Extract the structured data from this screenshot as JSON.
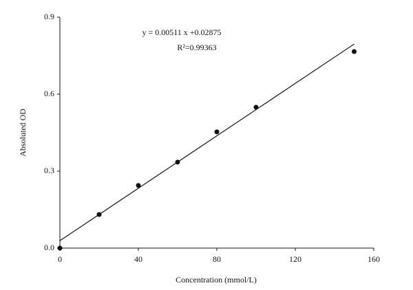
{
  "chart_data": {
    "type": "scatter",
    "x_label": "Concentration (mmol/L)",
    "y_label": "Absoluted OD",
    "annotations": [
      "y = 0.00511 x +0.02875",
      "R²=0.99363"
    ],
    "x": [
      0,
      20,
      40,
      60,
      80,
      100,
      150
    ],
    "values": [
      0.0,
      0.131,
      0.244,
      0.335,
      0.453,
      0.549,
      0.766
    ],
    "color": "#111111",
    "fit": {
      "slope": 0.00511,
      "intercept": 0.02875
    },
    "xlim": [
      0,
      160
    ],
    "xticks": [
      0,
      40,
      80,
      120,
      160
    ],
    "ylim": [
      0,
      0.9
    ],
    "yticks": [
      {
        "value": 0,
        "label": "0.0"
      },
      0.3,
      0.6,
      0.9
    ],
    "grid": false
  }
}
